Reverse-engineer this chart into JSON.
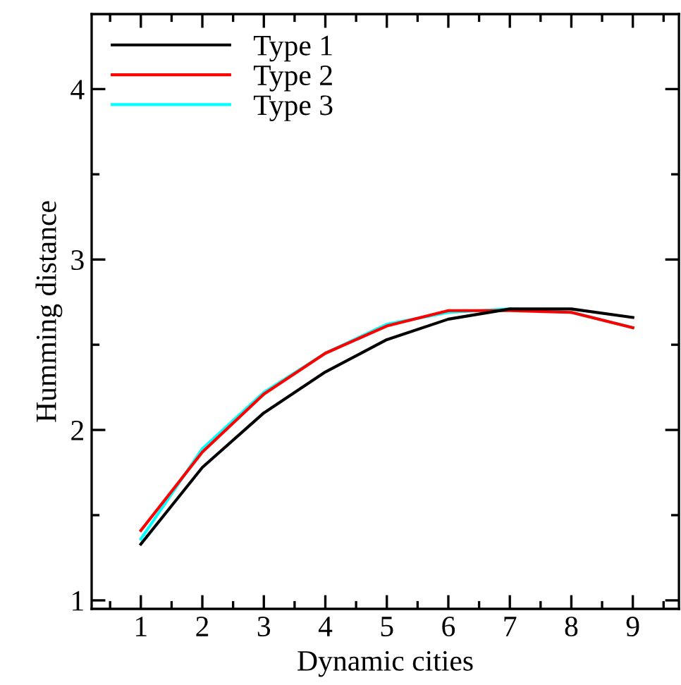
{
  "chart_data": {
    "type": "line",
    "xlabel": "Dynamic cities",
    "ylabel": "Humming distance",
    "x": [
      1,
      2,
      3,
      4,
      5,
      6,
      7,
      8,
      9
    ],
    "series": [
      {
        "name": "Type 1",
        "color": "#000000",
        "values": [
          1.33,
          1.78,
          2.1,
          2.34,
          2.53,
          2.65,
          2.71,
          2.71,
          2.66
        ]
      },
      {
        "name": "Type 2",
        "color": "#ff0000",
        "values": [
          1.41,
          1.87,
          2.21,
          2.45,
          2.61,
          2.7,
          2.7,
          2.69,
          2.6
        ]
      },
      {
        "name": "Type 3",
        "color": "#00ffff",
        "values": [
          1.36,
          1.89,
          2.22,
          2.45,
          2.62,
          2.69,
          2.71,
          2.69,
          2.6
        ]
      }
    ],
    "xlim": [
      0.2,
      9.75
    ],
    "ylim": [
      0.95,
      4.44
    ],
    "xticks": [
      {
        "value": 0.5,
        "label": null
      },
      1,
      {
        "value": 1.5,
        "label": null
      },
      2,
      {
        "value": 2.5,
        "label": null
      },
      3,
      {
        "value": 3.5,
        "label": null
      },
      4,
      {
        "value": 4.5,
        "label": null
      },
      5,
      {
        "value": 5.5,
        "label": null
      },
      6,
      {
        "value": 6.5,
        "label": null
      },
      7,
      {
        "value": 7.5,
        "label": null
      },
      8,
      {
        "value": 8.5,
        "label": null
      },
      9,
      {
        "value": 9.5,
        "label": null
      }
    ],
    "yticks": [
      1,
      {
        "value": 1.5,
        "label": null
      },
      2,
      {
        "value": 2.5,
        "label": null
      },
      3,
      {
        "value": 3.5,
        "label": null
      },
      4
    ],
    "grid": false,
    "legend": "top left",
    "marker": "none",
    "line_style": "solid"
  }
}
